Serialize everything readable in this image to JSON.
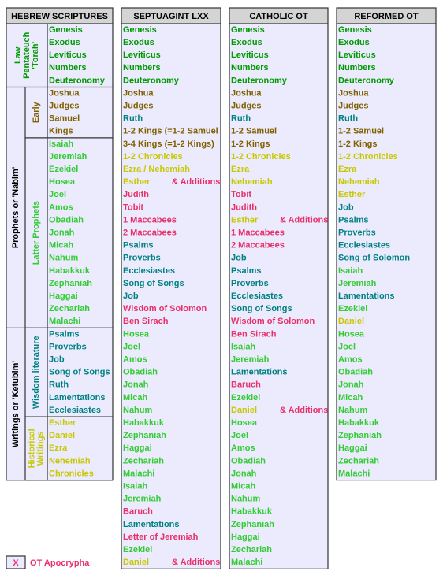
{
  "hebrew": {
    "header": "HEBREW SCRIPTURES",
    "sections": [
      {
        "label": [
          "Law",
          "Pentateuch",
          "'Torah'"
        ],
        "color": "#009900",
        "books": [
          "Genesis",
          "Exodus",
          "Leviticus",
          "Numbers",
          "Deuteronomy"
        ]
      },
      {
        "label": [
          "Prophets or 'Nabim'"
        ],
        "color": "#000000",
        "groups": [
          {
            "label": [
              "Early"
            ],
            "color": "#806000",
            "books": [
              "Joshua",
              "Judges",
              "Samuel",
              "Kings"
            ]
          },
          {
            "label": [
              "Latter Prophets"
            ],
            "color": "#33cc33",
            "books": [
              "Isaiah",
              "Jeremiah",
              "Ezekiel",
              "Hosea",
              "Joel",
              "Amos",
              "Obadiah",
              "Jonah",
              "Micah",
              "Nahum",
              "Habakkuk",
              "Zephaniah",
              "Haggai",
              "Zechariah",
              "Malachi"
            ]
          }
        ]
      },
      {
        "label": [
          "Writings  or 'Ketubim'"
        ],
        "color": "#000000",
        "groups": [
          {
            "label": [
              "Wisdom literature"
            ],
            "color": "#008080",
            "books": [
              "Psalms",
              "Proverbs",
              "Job",
              "Song of Songs",
              "Ruth",
              "Lamentations",
              "Ecclesiastes"
            ]
          },
          {
            "label": [
              "Historical",
              "Writings"
            ],
            "color": "#c8c800",
            "books": [
              "Esther",
              "Daniel",
              "Ezra",
              "Nehemiah",
              "Chronicles"
            ]
          }
        ]
      }
    ]
  },
  "columns": [
    {
      "header": "SEPTUAGINT LXX",
      "books": [
        {
          "name": "Genesis",
          "color": "#009900"
        },
        {
          "name": "Exodus",
          "color": "#009900"
        },
        {
          "name": "Leviticus",
          "color": "#009900"
        },
        {
          "name": "Numbers",
          "color": "#009900"
        },
        {
          "name": "Deuteronomy",
          "color": "#009900"
        },
        {
          "name": "Joshua",
          "color": "#806000"
        },
        {
          "name": "Judges",
          "color": "#806000"
        },
        {
          "name": "Ruth",
          "color": "#008080"
        },
        {
          "name": "1-2 Kings (=1-2 Samuel",
          "color": "#806000"
        },
        {
          "name": "3-4 Kings (=1-2 Kings)",
          "color": "#806000"
        },
        {
          "name": "1-2 Chronicles",
          "color": "#c8c800"
        },
        {
          "name": "Ezra / Nehemiah",
          "color": "#c8c800"
        },
        {
          "name": "Esther",
          "color": "#c8c800",
          "addition": "& Additions",
          "addition_color": "#e8306a"
        },
        {
          "name": "Judith",
          "color": "#e8306a"
        },
        {
          "name": "Tobit",
          "color": "#e8306a"
        },
        {
          "name": "1 Maccabees",
          "color": "#e8306a"
        },
        {
          "name": "2 Maccabees",
          "color": "#e8306a"
        },
        {
          "name": "Psalms",
          "color": "#008080"
        },
        {
          "name": "Proverbs",
          "color": "#008080"
        },
        {
          "name": "Ecclesiastes",
          "color": "#008080"
        },
        {
          "name": "Song of Songs",
          "color": "#008080"
        },
        {
          "name": "Job",
          "color": "#008080"
        },
        {
          "name": "Wisdom of Solomon",
          "color": "#e8306a"
        },
        {
          "name": "Ben Sirach",
          "color": "#e8306a"
        },
        {
          "name": "Hosea",
          "color": "#33cc33"
        },
        {
          "name": "Joel",
          "color": "#33cc33"
        },
        {
          "name": "Amos",
          "color": "#33cc33"
        },
        {
          "name": "Obadiah",
          "color": "#33cc33"
        },
        {
          "name": "Jonah",
          "color": "#33cc33"
        },
        {
          "name": "Micah",
          "color": "#33cc33"
        },
        {
          "name": "Nahum",
          "color": "#33cc33"
        },
        {
          "name": "Habakkuk",
          "color": "#33cc33"
        },
        {
          "name": "Zephaniah",
          "color": "#33cc33"
        },
        {
          "name": "Haggai",
          "color": "#33cc33"
        },
        {
          "name": "Zechariah",
          "color": "#33cc33"
        },
        {
          "name": "Malachi",
          "color": "#33cc33"
        },
        {
          "name": "Isaiah",
          "color": "#33cc33"
        },
        {
          "name": "Jeremiah",
          "color": "#33cc33"
        },
        {
          "name": "Baruch",
          "color": "#e8306a"
        },
        {
          "name": "Lamentations",
          "color": "#008080"
        },
        {
          "name": "Letter of Jeremiah",
          "color": "#e8306a"
        },
        {
          "name": "Ezekiel",
          "color": "#33cc33"
        },
        {
          "name": "Daniel",
          "color": "#c8c800",
          "addition": "& Additions",
          "addition_color": "#e8306a"
        }
      ]
    },
    {
      "header": "CATHOLIC OT",
      "books": [
        {
          "name": "Genesis",
          "color": "#009900"
        },
        {
          "name": "Exodus",
          "color": "#009900"
        },
        {
          "name": "Leviticus",
          "color": "#009900"
        },
        {
          "name": "Numbers",
          "color": "#009900"
        },
        {
          "name": "Deuteronomy",
          "color": "#009900"
        },
        {
          "name": "Joshua",
          "color": "#806000"
        },
        {
          "name": "Judges",
          "color": "#806000"
        },
        {
          "name": "Ruth",
          "color": "#008080"
        },
        {
          "name": "1-2 Samuel",
          "color": "#806000"
        },
        {
          "name": "1-2 Kings",
          "color": "#806000"
        },
        {
          "name": "1-2 Chronicles",
          "color": "#c8c800"
        },
        {
          "name": "Ezra",
          "color": "#c8c800"
        },
        {
          "name": "Nehemiah",
          "color": "#c8c800"
        },
        {
          "name": "Tobit",
          "color": "#e8306a"
        },
        {
          "name": "Judith",
          "color": "#e8306a"
        },
        {
          "name": "Esther",
          "color": "#c8c800",
          "addition": "& Additions",
          "addition_color": "#e8306a"
        },
        {
          "name": "1 Maccabees",
          "color": "#e8306a"
        },
        {
          "name": "2 Maccabees",
          "color": "#e8306a"
        },
        {
          "name": "Job",
          "color": "#008080"
        },
        {
          "name": "Psalms",
          "color": "#008080"
        },
        {
          "name": "Proverbs",
          "color": "#008080"
        },
        {
          "name": "Ecclesiastes",
          "color": "#008080"
        },
        {
          "name": "Song of Songs",
          "color": "#008080"
        },
        {
          "name": "Wisdom of Solomon",
          "color": "#e8306a"
        },
        {
          "name": "Ben Sirach",
          "color": "#e8306a"
        },
        {
          "name": "Isaiah",
          "color": "#33cc33"
        },
        {
          "name": "Jeremiah",
          "color": "#33cc33"
        },
        {
          "name": "Lamentations",
          "color": "#008080"
        },
        {
          "name": "Baruch",
          "color": "#e8306a"
        },
        {
          "name": "Ezekiel",
          "color": "#33cc33"
        },
        {
          "name": "Daniel",
          "color": "#c8c800",
          "addition": "& Additions",
          "addition_color": "#e8306a"
        },
        {
          "name": "Hosea",
          "color": "#33cc33"
        },
        {
          "name": "Joel",
          "color": "#33cc33"
        },
        {
          "name": "Amos",
          "color": "#33cc33"
        },
        {
          "name": "Obadiah",
          "color": "#33cc33"
        },
        {
          "name": "Jonah",
          "color": "#33cc33"
        },
        {
          "name": "Micah",
          "color": "#33cc33"
        },
        {
          "name": "Nahum",
          "color": "#33cc33"
        },
        {
          "name": "Habakkuk",
          "color": "#33cc33"
        },
        {
          "name": "Zephaniah",
          "color": "#33cc33"
        },
        {
          "name": "Haggai",
          "color": "#33cc33"
        },
        {
          "name": "Zechariah",
          "color": "#33cc33"
        },
        {
          "name": "Malachi",
          "color": "#33cc33"
        }
      ]
    },
    {
      "header": "REFORMED OT",
      "books": [
        {
          "name": "Genesis",
          "color": "#009900"
        },
        {
          "name": "Exodus",
          "color": "#009900"
        },
        {
          "name": "Leviticus",
          "color": "#009900"
        },
        {
          "name": "Numbers",
          "color": "#009900"
        },
        {
          "name": "Deuteronomy",
          "color": "#009900"
        },
        {
          "name": "Joshua",
          "color": "#806000"
        },
        {
          "name": "Judges",
          "color": "#806000"
        },
        {
          "name": "Ruth",
          "color": "#008080"
        },
        {
          "name": "1-2 Samuel",
          "color": "#806000"
        },
        {
          "name": "1-2 Kings",
          "color": "#806000"
        },
        {
          "name": "1-2 Chronicles",
          "color": "#c8c800"
        },
        {
          "name": "Ezra",
          "color": "#c8c800"
        },
        {
          "name": "Nehemiah",
          "color": "#c8c800"
        },
        {
          "name": "Esther",
          "color": "#c8c800"
        },
        {
          "name": "Job",
          "color": "#008080"
        },
        {
          "name": "Psalms",
          "color": "#008080"
        },
        {
          "name": "Proverbs",
          "color": "#008080"
        },
        {
          "name": "Ecclesiastes",
          "color": "#008080"
        },
        {
          "name": "Song of Solomon",
          "color": "#008080"
        },
        {
          "name": "Isaiah",
          "color": "#33cc33"
        },
        {
          "name": "Jeremiah",
          "color": "#33cc33"
        },
        {
          "name": "Lamentations",
          "color": "#008080"
        },
        {
          "name": "Ezekiel",
          "color": "#33cc33"
        },
        {
          "name": "Daniel",
          "color": "#c8c800"
        },
        {
          "name": "Hosea",
          "color": "#33cc33"
        },
        {
          "name": "Joel",
          "color": "#33cc33"
        },
        {
          "name": "Amos",
          "color": "#33cc33"
        },
        {
          "name": "Obadiah",
          "color": "#33cc33"
        },
        {
          "name": "Jonah",
          "color": "#33cc33"
        },
        {
          "name": "Micah",
          "color": "#33cc33"
        },
        {
          "name": "Nahum",
          "color": "#33cc33"
        },
        {
          "name": "Habakkuk",
          "color": "#33cc33"
        },
        {
          "name": "Zephaniah",
          "color": "#33cc33"
        },
        {
          "name": "Haggai",
          "color": "#33cc33"
        },
        {
          "name": "Zechariah",
          "color": "#33cc33"
        },
        {
          "name": "Malachi",
          "color": "#33cc33"
        }
      ]
    }
  ],
  "legend": {
    "marker": "X",
    "label": "OT Apocrypha",
    "color": "#e8306a"
  }
}
